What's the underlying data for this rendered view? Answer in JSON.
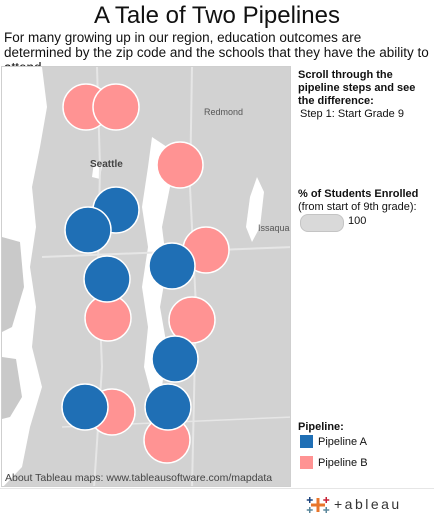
{
  "title": "A Tale of Two Pipelines",
  "subtitle": "For many growing up in our region, education outcomes are determined by the zip code and the schools that they have the ability to attend.",
  "map": {
    "labels": {
      "redmond": "Redmond",
      "seattle": "Seattle",
      "issaquah": "Issaquah"
    },
    "credit": "About Tableau maps: www.tableausoftware.com/mapdata"
  },
  "side": {
    "scroll_heading": "Scroll through the pipeline steps and see the difference:",
    "step_value": "Step 1: Start Grade 9",
    "size_heading": "% of Students Enrolled",
    "size_subheading": "(from start of 9th grade):",
    "size_value": "100",
    "legend_title": "Pipeline:",
    "legend": [
      {
        "label": "Pipeline A",
        "color": "#1f6fb5"
      },
      {
        "label": "Pipeline B",
        "color": "#ff9393"
      }
    ]
  },
  "brand": {
    "name": "+ableau",
    "logo_icon": "tableau-cross-icon"
  },
  "colors": {
    "pipeline_a": "#1f6fb5",
    "pipeline_b": "#ff9393"
  }
}
